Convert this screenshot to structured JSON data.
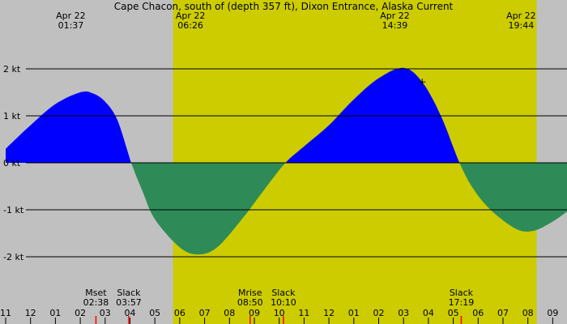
{
  "chart_data": {
    "type": "area",
    "title": "Cape Chacon, south of (depth 357 ft), Dixon Entrance, Alaska Current",
    "colors": {
      "night": "#c0c0c0",
      "day": "#cccc00",
      "flood": "#0000ff",
      "ebb": "#2e8b57",
      "gridline": "#000000",
      "moon_tick": "#ff0000",
      "sun_tick": "#000000",
      "marker": "#000000"
    },
    "y_axis": {
      "unit": "kt",
      "range": [
        -2.75,
        2.95
      ],
      "ticks": [
        {
          "value": 2,
          "label": "2 kt"
        },
        {
          "value": 1,
          "label": "1 kt"
        },
        {
          "value": 0,
          "label": "0 kt"
        },
        {
          "value": -1,
          "label": "-1 kt"
        },
        {
          "value": -2,
          "label": "-2 kt"
        }
      ]
    },
    "x_axis": {
      "unit": "hours from 11:00 (Apr 21)",
      "range": [
        0,
        22.8
      ],
      "hour_ticks": [
        {
          "t": 0,
          "label": "11"
        },
        {
          "t": 1,
          "label": "12"
        },
        {
          "t": 2,
          "label": "01"
        },
        {
          "t": 3,
          "label": "02"
        },
        {
          "t": 4,
          "label": "03"
        },
        {
          "t": 5,
          "label": "04"
        },
        {
          "t": 6,
          "label": "05"
        },
        {
          "t": 7,
          "label": "06"
        },
        {
          "t": 8,
          "label": "07"
        },
        {
          "t": 9,
          "label": "08"
        },
        {
          "t": 10,
          "label": "09"
        },
        {
          "t": 11,
          "label": "10"
        },
        {
          "t": 12,
          "label": "11"
        },
        {
          "t": 13,
          "label": "12"
        },
        {
          "t": 14,
          "label": "01"
        },
        {
          "t": 15,
          "label": "02"
        },
        {
          "t": 16,
          "label": "03"
        },
        {
          "t": 17,
          "label": "04"
        },
        {
          "t": 18,
          "label": "05"
        },
        {
          "t": 19,
          "label": "06"
        },
        {
          "t": 20,
          "label": "07"
        },
        {
          "t": 21,
          "label": "08"
        },
        {
          "t": 22,
          "label": "09"
        }
      ]
    },
    "daylight": [
      {
        "start": 19.43,
        "end": 32.73
      }
    ],
    "daylight_periods": [
      {
        "start": 6.73,
        "end": 21.35
      }
    ],
    "top_labels": [
      {
        "t": 2.62,
        "date": "Apr 22",
        "time": "01:37"
      },
      {
        "t": 7.43,
        "date": "Apr 22",
        "time": "06:26"
      },
      {
        "t": 15.65,
        "date": "Apr 22",
        "time": "14:39"
      },
      {
        "t": 20.73,
        "date": "Apr 22",
        "time": "19:44"
      }
    ],
    "events": [
      {
        "t": 3.63,
        "name": "Mset",
        "time": "02:38",
        "tick": "moon"
      },
      {
        "t": 4.95,
        "name": "Slack",
        "time": "03:57",
        "tick": "moon"
      },
      {
        "t": 9.83,
        "name": "Mrise",
        "time": "08:50",
        "tick": "moon"
      },
      {
        "t": 11.17,
        "name": "Slack",
        "time": "10:10",
        "tick": "moon"
      },
      {
        "t": 18.32,
        "name": "Slack",
        "time": "17:19",
        "tick": "moon"
      }
    ],
    "marker": {
      "t": 16.75,
      "value": 1.72
    },
    "series": [
      {
        "x": [
          0,
          1,
          2,
          3,
          3.5,
          4,
          4.5,
          5.05,
          5.5,
          6,
          7,
          7.74,
          8.5,
          9.5,
          10.5,
          11.25,
          12,
          13,
          14,
          15,
          16,
          16.75,
          17.5,
          18.25,
          18.8,
          19.5,
          20.5,
          21.2,
          22,
          22.8
        ],
        "values": [
          0.3,
          0.8,
          1.25,
          1.5,
          1.48,
          1.3,
          0.9,
          0.0,
          -0.6,
          -1.2,
          -1.8,
          -1.95,
          -1.8,
          -1.2,
          -0.5,
          0.0,
          0.35,
          0.8,
          1.35,
          1.8,
          2.02,
          1.72,
          1.0,
          0.0,
          -0.55,
          -1.0,
          -1.4,
          -1.45,
          -1.25,
          -0.95
        ]
      }
    ]
  }
}
